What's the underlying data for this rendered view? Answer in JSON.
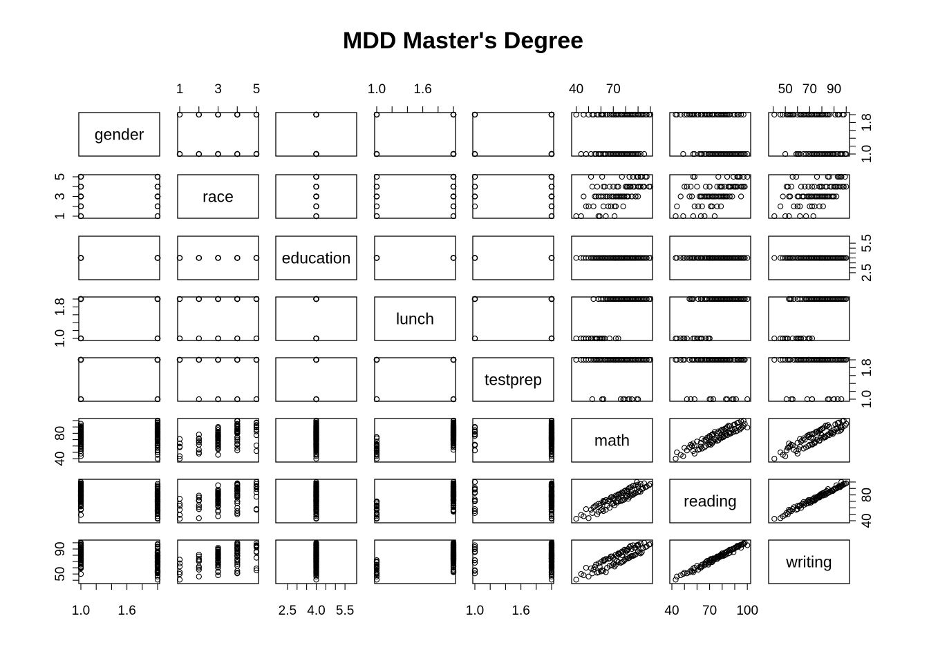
{
  "chart_data": {
    "type": "scatter",
    "subtype": "scatterplot-matrix",
    "title": "MDD Master's Degree",
    "variables": [
      {
        "name": "gender",
        "range": [
          1,
          2
        ],
        "ticks": [
          1.0,
          1.2,
          1.4,
          1.6,
          1.8,
          2.0
        ],
        "tick_labels": [
          "1.0",
          "1.6"
        ]
      },
      {
        "name": "race",
        "range": [
          1,
          5
        ],
        "ticks": [
          1,
          2,
          3,
          4,
          5
        ],
        "tick_labels": [
          "1",
          "3",
          "5"
        ]
      },
      {
        "name": "education",
        "range": [
          2,
          6
        ],
        "ticks": [
          2.5,
          3.0,
          3.5,
          4.0,
          4.5,
          5.0,
          5.5
        ],
        "tick_labels": [
          "2.5",
          "4.0",
          "5.5"
        ]
      },
      {
        "name": "lunch",
        "range": [
          1,
          2
        ],
        "ticks": [
          1.0,
          1.2,
          1.4,
          1.6,
          1.8,
          2.0
        ],
        "tick_labels": [
          "1.0",
          "1.6"
        ]
      },
      {
        "name": "testprep",
        "range": [
          1,
          2
        ],
        "ticks": [
          1.0,
          1.2,
          1.4,
          1.6,
          1.8,
          2.0
        ],
        "tick_labels": [
          "1.0",
          "1.6"
        ]
      },
      {
        "name": "math",
        "range": [
          38,
          100
        ],
        "ticks": [
          40,
          50,
          60,
          70,
          80,
          90,
          100
        ],
        "tick_labels": [
          "40",
          "70"
        ]
      },
      {
        "name": "reading",
        "range": [
          40,
          101
        ],
        "ticks": [
          40,
          50,
          60,
          70,
          80,
          90,
          100
        ],
        "tick_labels": [
          "40",
          "70",
          "100"
        ]
      },
      {
        "name": "writing",
        "range": [
          38,
          101
        ],
        "ticks": [
          40,
          50,
          60,
          70,
          80,
          90,
          100
        ],
        "tick_labels": [
          "50",
          "70",
          "90"
        ]
      }
    ],
    "left_axis_labels": {
      "race": [
        "1",
        "3",
        "5"
      ],
      "lunch": [
        "1.0",
        "1.8"
      ],
      "math": [
        "40",
        "80"
      ],
      "writing": [
        "50",
        "90"
      ]
    },
    "right_axis_labels": {
      "gender": [
        "1.0",
        "1.8"
      ],
      "education": [
        "2.5",
        "5.5"
      ],
      "testprep": [
        "1.0",
        "1.8"
      ],
      "reading": [
        "40",
        "80"
      ]
    },
    "observations": [
      [
        1,
        3,
        4,
        2,
        2,
        88,
        95,
        92
      ],
      [
        2,
        4,
        4,
        2,
        1,
        62,
        55,
        55
      ],
      [
        1,
        2,
        4,
        1,
        2,
        48,
        58,
        60
      ],
      [
        2,
        5,
        4,
        2,
        2,
        93,
        89,
        85
      ],
      [
        1,
        1,
        4,
        2,
        2,
        71,
        74,
        73
      ],
      [
        2,
        3,
        4,
        1,
        2,
        72,
        69,
        65
      ],
      [
        1,
        4,
        4,
        2,
        1,
        83,
        91,
        93
      ],
      [
        2,
        2,
        4,
        2,
        2,
        54,
        61,
        57
      ],
      [
        1,
        3,
        4,
        2,
        2,
        79,
        86,
        89
      ],
      [
        2,
        4,
        4,
        1,
        2,
        67,
        60,
        63
      ],
      [
        1,
        5,
        4,
        2,
        1,
        89,
        100,
        96
      ],
      [
        2,
        3,
        4,
        2,
        2,
        81,
        78,
        77
      ],
      [
        1,
        1,
        4,
        1,
        2,
        59,
        63,
        62
      ],
      [
        1,
        3,
        4,
        2,
        2,
        77,
        79,
        80
      ],
      [
        2,
        4,
        4,
        2,
        2,
        86,
        80,
        79
      ],
      [
        1,
        2,
        4,
        2,
        2,
        66,
        71,
        74
      ],
      [
        2,
        5,
        4,
        1,
        1,
        61,
        58,
        56
      ],
      [
        1,
        3,
        4,
        2,
        2,
        75,
        81,
        82
      ],
      [
        2,
        4,
        4,
        2,
        2,
        94,
        90,
        91
      ],
      [
        1,
        3,
        4,
        1,
        2,
        55,
        62,
        61
      ],
      [
        2,
        2,
        4,
        2,
        2,
        78,
        72,
        70
      ],
      [
        1,
        4,
        4,
        2,
        2,
        84,
        92,
        95
      ],
      [
        2,
        3,
        4,
        2,
        1,
        90,
        84,
        86
      ],
      [
        1,
        5,
        4,
        1,
        2,
        52,
        57,
        59
      ],
      [
        2,
        3,
        4,
        2,
        2,
        73,
        68,
        71
      ],
      [
        1,
        4,
        4,
        2,
        2,
        80,
        87,
        88
      ],
      [
        2,
        1,
        4,
        2,
        2,
        64,
        57,
        53
      ],
      [
        1,
        3,
        4,
        2,
        1,
        85,
        88,
        90
      ],
      [
        2,
        4,
        4,
        1,
        2,
        57,
        50,
        52
      ],
      [
        1,
        3,
        4,
        2,
        2,
        70,
        75,
        76
      ],
      [
        2,
        5,
        4,
        2,
        2,
        97,
        93,
        94
      ],
      [
        1,
        2,
        4,
        2,
        2,
        68,
        76,
        78
      ],
      [
        2,
        3,
        4,
        2,
        2,
        82,
        74,
        75
      ],
      [
        1,
        4,
        4,
        1,
        2,
        63,
        70,
        72
      ],
      [
        2,
        3,
        4,
        2,
        1,
        76,
        70,
        68
      ],
      [
        1,
        5,
        4,
        2,
        2,
        92,
        97,
        99
      ],
      [
        2,
        4,
        4,
        2,
        2,
        87,
        82,
        80
      ],
      [
        1,
        3,
        4,
        2,
        2,
        74,
        80,
        83
      ],
      [
        2,
        2,
        4,
        1,
        2,
        50,
        44,
        46
      ],
      [
        1,
        4,
        4,
        2,
        2,
        81,
        85,
        87
      ],
      [
        2,
        3,
        4,
        2,
        2,
        69,
        66,
        64
      ],
      [
        1,
        3,
        4,
        2,
        1,
        78,
        83,
        85
      ],
      [
        2,
        4,
        4,
        2,
        2,
        91,
        86,
        84
      ],
      [
        1,
        1,
        4,
        2,
        2,
        58,
        66,
        67
      ],
      [
        2,
        5,
        4,
        2,
        2,
        83,
        77,
        76
      ],
      [
        1,
        3,
        4,
        1,
        2,
        62,
        69,
        70
      ],
      [
        2,
        3,
        4,
        2,
        2,
        65,
        63,
        60
      ],
      [
        1,
        4,
        4,
        2,
        2,
        95,
        98,
        100
      ],
      [
        2,
        4,
        4,
        1,
        1,
        53,
        52,
        51
      ],
      [
        1,
        3,
        4,
        2,
        2,
        76,
        82,
        84
      ],
      [
        2,
        3,
        4,
        2,
        2,
        88,
        83,
        81
      ],
      [
        1,
        5,
        4,
        2,
        2,
        86,
        94,
        96
      ],
      [
        2,
        4,
        4,
        2,
        2,
        99,
        95,
        97
      ],
      [
        1,
        3,
        4,
        1,
        2,
        60,
        67,
        69
      ],
      [
        2,
        2,
        4,
        2,
        2,
        71,
        64,
        62
      ],
      [
        1,
        4,
        4,
        2,
        2,
        73,
        78,
        79
      ],
      [
        2,
        3,
        4,
        2,
        1,
        79,
        73,
        72
      ],
      [
        1,
        3,
        4,
        2,
        2,
        67,
        73,
        75
      ],
      [
        2,
        4,
        4,
        2,
        2,
        84,
        79,
        78
      ],
      [
        1,
        1,
        4,
        1,
        2,
        44,
        49,
        50
      ],
      [
        2,
        3,
        4,
        2,
        2,
        60,
        56,
        54
      ],
      [
        1,
        4,
        4,
        2,
        2,
        90,
        96,
        97
      ],
      [
        2,
        4,
        4,
        1,
        2,
        74,
        70,
        69
      ],
      [
        1,
        3,
        4,
        2,
        2,
        69,
        77,
        78
      ],
      [
        2,
        5,
        4,
        2,
        2,
        96,
        92,
        93
      ],
      [
        1,
        2,
        4,
        2,
        2,
        72,
        79,
        81
      ],
      [
        2,
        3,
        4,
        2,
        2,
        58,
        54,
        53
      ],
      [
        1,
        4,
        4,
        2,
        1,
        82,
        89,
        90
      ],
      [
        2,
        3,
        4,
        1,
        2,
        46,
        47,
        48
      ],
      [
        1,
        3,
        4,
        2,
        2,
        64,
        72,
        74
      ],
      [
        2,
        4,
        4,
        2,
        2,
        100,
        97,
        98
      ],
      [
        1,
        5,
        4,
        2,
        2,
        77,
        84,
        86
      ],
      [
        2,
        3,
        4,
        2,
        2,
        85,
        81,
        79
      ],
      [
        1,
        3,
        4,
        1,
        2,
        56,
        64,
        65
      ],
      [
        2,
        4,
        4,
        2,
        2,
        80,
        76,
        74
      ],
      [
        1,
        4,
        4,
        2,
        2,
        87,
        90,
        92
      ],
      [
        1,
        3,
        4,
        2,
        2,
        74,
        81,
        82
      ],
      [
        2,
        4,
        4,
        2,
        2,
        92,
        85,
        83
      ],
      [
        1,
        5,
        4,
        2,
        2,
        90,
        93,
        95
      ],
      [
        2,
        3,
        4,
        2,
        2,
        77,
        72,
        69
      ],
      [
        2,
        1,
        4,
        1,
        2,
        40,
        43,
        41
      ],
      [
        1,
        2,
        4,
        2,
        1,
        62,
        71,
        72
      ],
      [
        2,
        4,
        4,
        2,
        2,
        70,
        67,
        66
      ],
      [
        1,
        3,
        4,
        2,
        2,
        81,
        86,
        88
      ]
    ]
  }
}
